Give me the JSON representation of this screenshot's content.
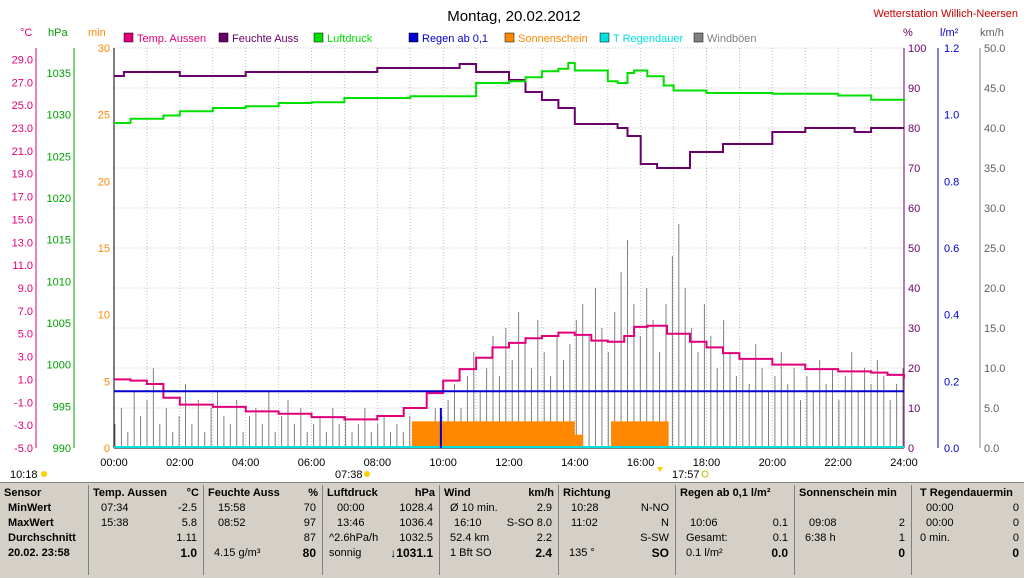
{
  "title": "Montag, 20.02.2012",
  "station": "Wetterstation Willich-Neersen",
  "colors": {
    "temp": "#e0007a",
    "humidity": "#6a006a",
    "pressure": "#00e000",
    "rain": "#0000d0",
    "sunshine": "#ff8800",
    "rain_duration": "#00e0e0",
    "gusts": "#808080"
  },
  "legend": [
    {
      "label": "Temp. Aussen",
      "color": "#e0007a"
    },
    {
      "label": "Feuchte Auss",
      "color": "#6a006a"
    },
    {
      "label": "Luftdruck",
      "color": "#00e000"
    },
    {
      "label": "Regen ab 0,1",
      "color": "#0000d0"
    },
    {
      "label": "Sonnenschein",
      "color": "#ff8800"
    },
    {
      "label": "T Regendauer",
      "color": "#00e0e0"
    },
    {
      "label": "Windböen",
      "color": "#808080"
    }
  ],
  "chart_data": {
    "type": "line",
    "x_labels": [
      "00:00",
      "02:00",
      "04:00",
      "06:00",
      "08:00",
      "10:00",
      "12:00",
      "14:00",
      "16:00",
      "18:00",
      "20:00",
      "22:00",
      "24:00"
    ],
    "axes": {
      "temp": {
        "unit": "°C",
        "ticks": [
          "29.0",
          "27.0",
          "25.0",
          "23.0",
          "21.0",
          "19.0",
          "17.0",
          "15.0",
          "13.0",
          "11.0",
          "9.0",
          "7.0",
          "5.0",
          "3.0",
          "1.0",
          "-1.0",
          "-3.0",
          "-5.0"
        ],
        "range": [
          -5,
          30
        ]
      },
      "pressure": {
        "unit": "hPa",
        "ticks": [
          "1035",
          "1030",
          "1025",
          "1020",
          "1015",
          "1010",
          "1005",
          "1000",
          "995",
          "990"
        ],
        "range": [
          990,
          1038
        ]
      },
      "minutes": {
        "unit": "min",
        "ticks": [
          "30",
          "25",
          "20",
          "15",
          "10",
          "5",
          "0"
        ],
        "range": [
          0,
          30
        ]
      },
      "humidity": {
        "unit": "%",
        "ticks": [
          "100",
          "90",
          "80",
          "70",
          "60",
          "50",
          "40",
          "30",
          "20",
          "10",
          "0"
        ],
        "range": [
          0,
          100
        ]
      },
      "rain": {
        "unit": "l/m²",
        "ticks": [
          "1.2",
          "1.0",
          "0.8",
          "0.6",
          "0.4",
          "0.2",
          "0.0"
        ],
        "range": [
          0,
          1.2
        ]
      },
      "wind": {
        "unit": "km/h",
        "ticks": [
          "50.0",
          "45.0",
          "40.0",
          "35.0",
          "30.0",
          "25.0",
          "20.0",
          "15.0",
          "10.0",
          "5.0",
          "0.0"
        ],
        "range": [
          0,
          50
        ]
      }
    },
    "series": [
      {
        "name": "Temp. Aussen",
        "axis": "temp",
        "points": [
          [
            0,
            1.0
          ],
          [
            0.5,
            0.9
          ],
          [
            1.0,
            0.6
          ],
          [
            1.5,
            -0.6
          ],
          [
            2.0,
            -1.2
          ],
          [
            3.0,
            -1.4
          ],
          [
            4.0,
            -1.8
          ],
          [
            5.0,
            -2.0
          ],
          [
            6.0,
            -2.3
          ],
          [
            7.0,
            -2.5
          ],
          [
            7.5,
            -2.5
          ],
          [
            8.0,
            -2.2
          ],
          [
            8.8,
            -1.5
          ],
          [
            9.5,
            -0.2
          ],
          [
            10.0,
            0.9
          ],
          [
            10.5,
            1.9
          ],
          [
            11.0,
            2.9
          ],
          [
            11.5,
            3.8
          ],
          [
            12.0,
            4.2
          ],
          [
            12.5,
            4.6
          ],
          [
            13.0,
            4.8
          ],
          [
            13.5,
            5.1
          ],
          [
            14.0,
            4.9
          ],
          [
            14.5,
            4.4
          ],
          [
            15.0,
            4.3
          ],
          [
            15.5,
            4.8
          ],
          [
            15.8,
            5.6
          ],
          [
            16.2,
            5.7
          ],
          [
            16.8,
            5.0
          ],
          [
            17.5,
            4.3
          ],
          [
            18.0,
            3.8
          ],
          [
            18.5,
            3.3
          ],
          [
            19.0,
            2.8
          ],
          [
            20.0,
            2.3
          ],
          [
            21.0,
            1.9
          ],
          [
            22.0,
            1.7
          ],
          [
            23.0,
            1.6
          ],
          [
            23.5,
            1.4
          ],
          [
            24.0,
            1.1
          ]
        ]
      },
      {
        "name": "Feuchte Auss",
        "axis": "humidity",
        "points": [
          [
            0,
            93
          ],
          [
            0.3,
            94
          ],
          [
            1.8,
            94
          ],
          [
            2.0,
            93
          ],
          [
            3.0,
            93
          ],
          [
            4.0,
            94
          ],
          [
            6.0,
            94
          ],
          [
            8.0,
            95
          ],
          [
            10.5,
            96
          ],
          [
            11.0,
            94
          ],
          [
            12.0,
            92
          ],
          [
            12.5,
            89
          ],
          [
            13.0,
            87
          ],
          [
            13.5,
            85
          ],
          [
            14.0,
            81
          ],
          [
            15.0,
            81
          ],
          [
            15.3,
            80
          ],
          [
            15.6,
            78
          ],
          [
            16.0,
            71
          ],
          [
            16.5,
            70
          ],
          [
            17.5,
            74
          ],
          [
            18.5,
            76
          ],
          [
            20.0,
            79
          ],
          [
            21.0,
            80
          ],
          [
            22.0,
            80
          ],
          [
            22.5,
            79
          ],
          [
            23.0,
            80
          ],
          [
            24.0,
            80
          ]
        ]
      },
      {
        "name": "Luftdruck",
        "axis": "pressure",
        "points": [
          [
            0,
            1029.0
          ],
          [
            0.5,
            1029.5
          ],
          [
            1.5,
            1029.9
          ],
          [
            2.0,
            1030.4
          ],
          [
            3.0,
            1030.8
          ],
          [
            4.0,
            1031.0
          ],
          [
            5.0,
            1031.4
          ],
          [
            6.0,
            1031.5
          ],
          [
            7.0,
            1032.0
          ],
          [
            9.0,
            1032.2
          ],
          [
            11.0,
            1033.8
          ],
          [
            12.0,
            1034.0
          ],
          [
            12.5,
            1034.5
          ],
          [
            13.0,
            1035.2
          ],
          [
            13.5,
            1035.5
          ],
          [
            13.8,
            1036.2
          ],
          [
            14.0,
            1035.3
          ],
          [
            15.0,
            1034.0
          ],
          [
            15.3,
            1033.8
          ],
          [
            15.6,
            1035.0
          ],
          [
            15.8,
            1035.3
          ],
          [
            16.2,
            1034.6
          ],
          [
            16.7,
            1033.5
          ],
          [
            17.0,
            1032.9
          ],
          [
            18.0,
            1032.6
          ],
          [
            20.0,
            1032.5
          ],
          [
            22.0,
            1032.3
          ],
          [
            23.0,
            1031.8
          ],
          [
            24.0,
            1031.6
          ]
        ]
      },
      {
        "name": "Regen ab 0,1",
        "axis": "rain",
        "points": [
          [
            0,
            0.17
          ],
          [
            24,
            0.17
          ]
        ]
      }
    ],
    "sunshine_blocks": [
      {
        "from": 9.05,
        "to": 14.0,
        "minutes": 2
      },
      {
        "from": 14.0,
        "to": 14.25,
        "minutes": 1
      },
      {
        "from": 15.1,
        "to": 16.85,
        "minutes": 2
      }
    ],
    "gusts_approx_kmh": [
      3,
      5,
      2,
      7,
      4,
      6,
      10,
      3,
      5,
      2,
      4,
      8,
      3,
      6,
      2,
      5,
      7,
      4,
      3,
      6,
      2,
      4,
      5,
      3,
      7,
      2,
      4,
      6,
      3,
      5,
      2,
      3,
      4,
      2,
      5,
      3,
      4,
      2,
      3,
      5,
      2,
      3,
      4,
      2,
      3,
      2,
      4,
      3,
      2,
      3,
      5,
      4,
      6,
      8,
      5,
      9,
      12,
      7,
      10,
      14,
      9,
      15,
      11,
      17,
      13,
      10,
      16,
      12,
      9,
      14,
      11,
      13,
      16,
      18,
      14,
      20,
      15,
      12,
      17,
      22,
      26,
      18,
      14,
      20,
      16,
      12,
      18,
      24,
      28,
      20,
      15,
      12,
      18,
      14,
      10,
      16,
      12,
      9,
      11,
      8,
      13,
      10,
      7,
      9,
      12,
      8,
      10,
      6,
      9,
      7,
      11,
      8,
      10,
      6,
      9,
      12,
      7,
      10,
      8,
      11,
      9,
      6,
      8,
      10
    ],
    "sunrise": "07:38",
    "sunset": "17:57",
    "left_time": "10:18"
  },
  "table": {
    "sensor": {
      "header": "Sensor",
      "rows": [
        "MinWert",
        "MaxWert",
        "Durchschnitt",
        "20.02. 23:58"
      ]
    },
    "temp": {
      "header": "Temp. Aussen",
      "unit": "°C",
      "min_time": "07:34",
      "min": "-2.5",
      "max_time": "15:38",
      "max": "5.8",
      "avg": "1.11",
      "current": "1.0"
    },
    "humidity": {
      "header": "Feuchte Auss",
      "unit": "%",
      "min_time": "15:58",
      "min": "70",
      "max_time": "08:52",
      "max": "97",
      "avg": "87",
      "abs": "4.15 g/m³",
      "current": "80"
    },
    "pressure": {
      "header": "Luftdruck",
      "unit": "hPa",
      "min_time": "00:00",
      "min": "1028.4",
      "max_time": "13:46",
      "max": "1036.4",
      "trend": "^2.6hPa/h",
      "avg": "1032.5",
      "forecast": "sonnig",
      "current": "↓1031.1"
    },
    "wind": {
      "header": "Wind",
      "unit": "km/h",
      "r1a": "Ø 10 min.",
      "r1b": "2.9",
      "r2a": "16:10",
      "r2b": "S-SO 8.0",
      "r3a": "52.4 km",
      "r3b": "2.2",
      "r4a": "1 Bft SO",
      "r4b": "2.4"
    },
    "direction": {
      "header": "Richtung",
      "r1a": "10:28",
      "r1b": "N-NO",
      "r2a": "11:02",
      "r2b": "N",
      "r3b": "S-SW",
      "r4a": "135 °",
      "r4b": "SO"
    },
    "rain": {
      "header": "Regen ab 0,1",
      "unit": "l/m²",
      "r2a": "10:06",
      "r2b": "0.1",
      "r3a": "Gesamt:",
      "r3b": "0.1",
      "r4a": "0.1 l/m²",
      "r4b": "0.0"
    },
    "sun": {
      "header": "Sonnenschein min",
      "r2a": "09:08",
      "r2b": "2",
      "r3a": "6:38 h",
      "r3b": "1",
      "r4b": "0"
    },
    "raindur": {
      "header": "T Regendauermin",
      "r1a": "00:00",
      "r1b": "0",
      "r2a": "00:00",
      "r2b": "0",
      "r3a": "0 min.",
      "r3b": "0",
      "r4b": "0"
    }
  }
}
